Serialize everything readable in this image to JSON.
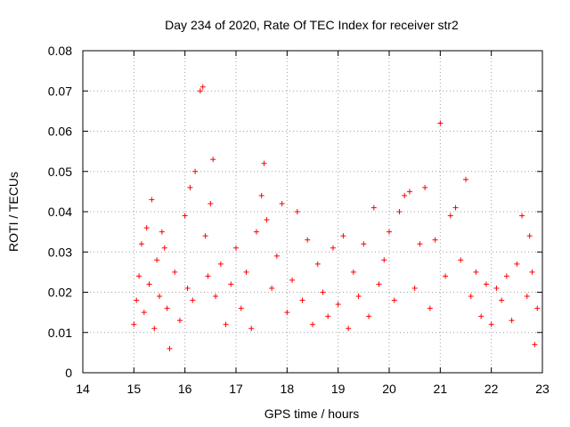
{
  "chart_data": {
    "type": "scatter",
    "title": "Day 234 of 2020, Rate Of TEC Index for receiver str2",
    "xlabel": "GPS time / hours",
    "ylabel": "ROTI / TECUs",
    "xlim": [
      14,
      23
    ],
    "ylim": [
      0,
      0.08
    ],
    "xticks": [
      "14",
      "15",
      "16",
      "17",
      "18",
      "19",
      "20",
      "21",
      "22",
      "23"
    ],
    "yticks": [
      "0",
      "0.01",
      "0.02",
      "0.03",
      "0.04",
      "0.05",
      "0.06",
      "0.07",
      "0.08"
    ],
    "grid": true,
    "marker": "+",
    "series_color": "#ff0000",
    "series": [
      {
        "name": "ROTI",
        "points": [
          [
            15.0,
            0.012
          ],
          [
            15.05,
            0.018
          ],
          [
            15.1,
            0.024
          ],
          [
            15.15,
            0.032
          ],
          [
            15.2,
            0.015
          ],
          [
            15.25,
            0.036
          ],
          [
            15.3,
            0.022
          ],
          [
            15.35,
            0.043
          ],
          [
            15.4,
            0.011
          ],
          [
            15.45,
            0.028
          ],
          [
            15.5,
            0.019
          ],
          [
            15.55,
            0.035
          ],
          [
            15.6,
            0.031
          ],
          [
            15.65,
            0.016
          ],
          [
            15.7,
            0.006
          ],
          [
            15.8,
            0.025
          ],
          [
            15.9,
            0.013
          ],
          [
            16.0,
            0.039
          ],
          [
            16.05,
            0.021
          ],
          [
            16.1,
            0.046
          ],
          [
            16.15,
            0.018
          ],
          [
            16.2,
            0.05
          ],
          [
            16.3,
            0.07
          ],
          [
            16.35,
            0.071
          ],
          [
            16.4,
            0.034
          ],
          [
            16.45,
            0.024
          ],
          [
            16.5,
            0.042
          ],
          [
            16.55,
            0.053
          ],
          [
            16.6,
            0.019
          ],
          [
            16.7,
            0.027
          ],
          [
            16.8,
            0.012
          ],
          [
            16.9,
            0.022
          ],
          [
            17.0,
            0.031
          ],
          [
            17.1,
            0.016
          ],
          [
            17.2,
            0.025
          ],
          [
            17.3,
            0.011
          ],
          [
            17.4,
            0.035
          ],
          [
            17.5,
            0.044
          ],
          [
            17.55,
            0.052
          ],
          [
            17.6,
            0.038
          ],
          [
            17.7,
            0.021
          ],
          [
            17.8,
            0.029
          ],
          [
            17.9,
            0.042
          ],
          [
            18.0,
            0.015
          ],
          [
            18.1,
            0.023
          ],
          [
            18.2,
            0.04
          ],
          [
            18.3,
            0.018
          ],
          [
            18.4,
            0.033
          ],
          [
            18.5,
            0.012
          ],
          [
            18.6,
            0.027
          ],
          [
            18.7,
            0.02
          ],
          [
            18.8,
            0.014
          ],
          [
            18.9,
            0.031
          ],
          [
            19.0,
            0.017
          ],
          [
            19.1,
            0.034
          ],
          [
            19.2,
            0.011
          ],
          [
            19.3,
            0.025
          ],
          [
            19.4,
            0.019
          ],
          [
            19.5,
            0.032
          ],
          [
            19.6,
            0.014
          ],
          [
            19.7,
            0.041
          ],
          [
            19.8,
            0.022
          ],
          [
            19.9,
            0.028
          ],
          [
            20.0,
            0.035
          ],
          [
            20.1,
            0.018
          ],
          [
            20.2,
            0.04
          ],
          [
            20.3,
            0.044
          ],
          [
            20.4,
            0.045
          ],
          [
            20.5,
            0.021
          ],
          [
            20.6,
            0.032
          ],
          [
            20.7,
            0.046
          ],
          [
            20.8,
            0.016
          ],
          [
            20.9,
            0.033
          ],
          [
            21.0,
            0.062
          ],
          [
            21.1,
            0.024
          ],
          [
            21.2,
            0.039
          ],
          [
            21.3,
            0.041
          ],
          [
            21.4,
            0.028
          ],
          [
            21.5,
            0.048
          ],
          [
            21.6,
            0.019
          ],
          [
            21.7,
            0.025
          ],
          [
            21.8,
            0.014
          ],
          [
            21.9,
            0.022
          ],
          [
            22.0,
            0.012
          ],
          [
            22.1,
            0.021
          ],
          [
            22.2,
            0.018
          ],
          [
            22.3,
            0.024
          ],
          [
            22.4,
            0.013
          ],
          [
            22.5,
            0.027
          ],
          [
            22.6,
            0.039
          ],
          [
            22.7,
            0.019
          ],
          [
            22.75,
            0.034
          ],
          [
            22.8,
            0.025
          ],
          [
            22.85,
            0.007
          ],
          [
            22.9,
            0.016
          ]
        ]
      }
    ]
  }
}
